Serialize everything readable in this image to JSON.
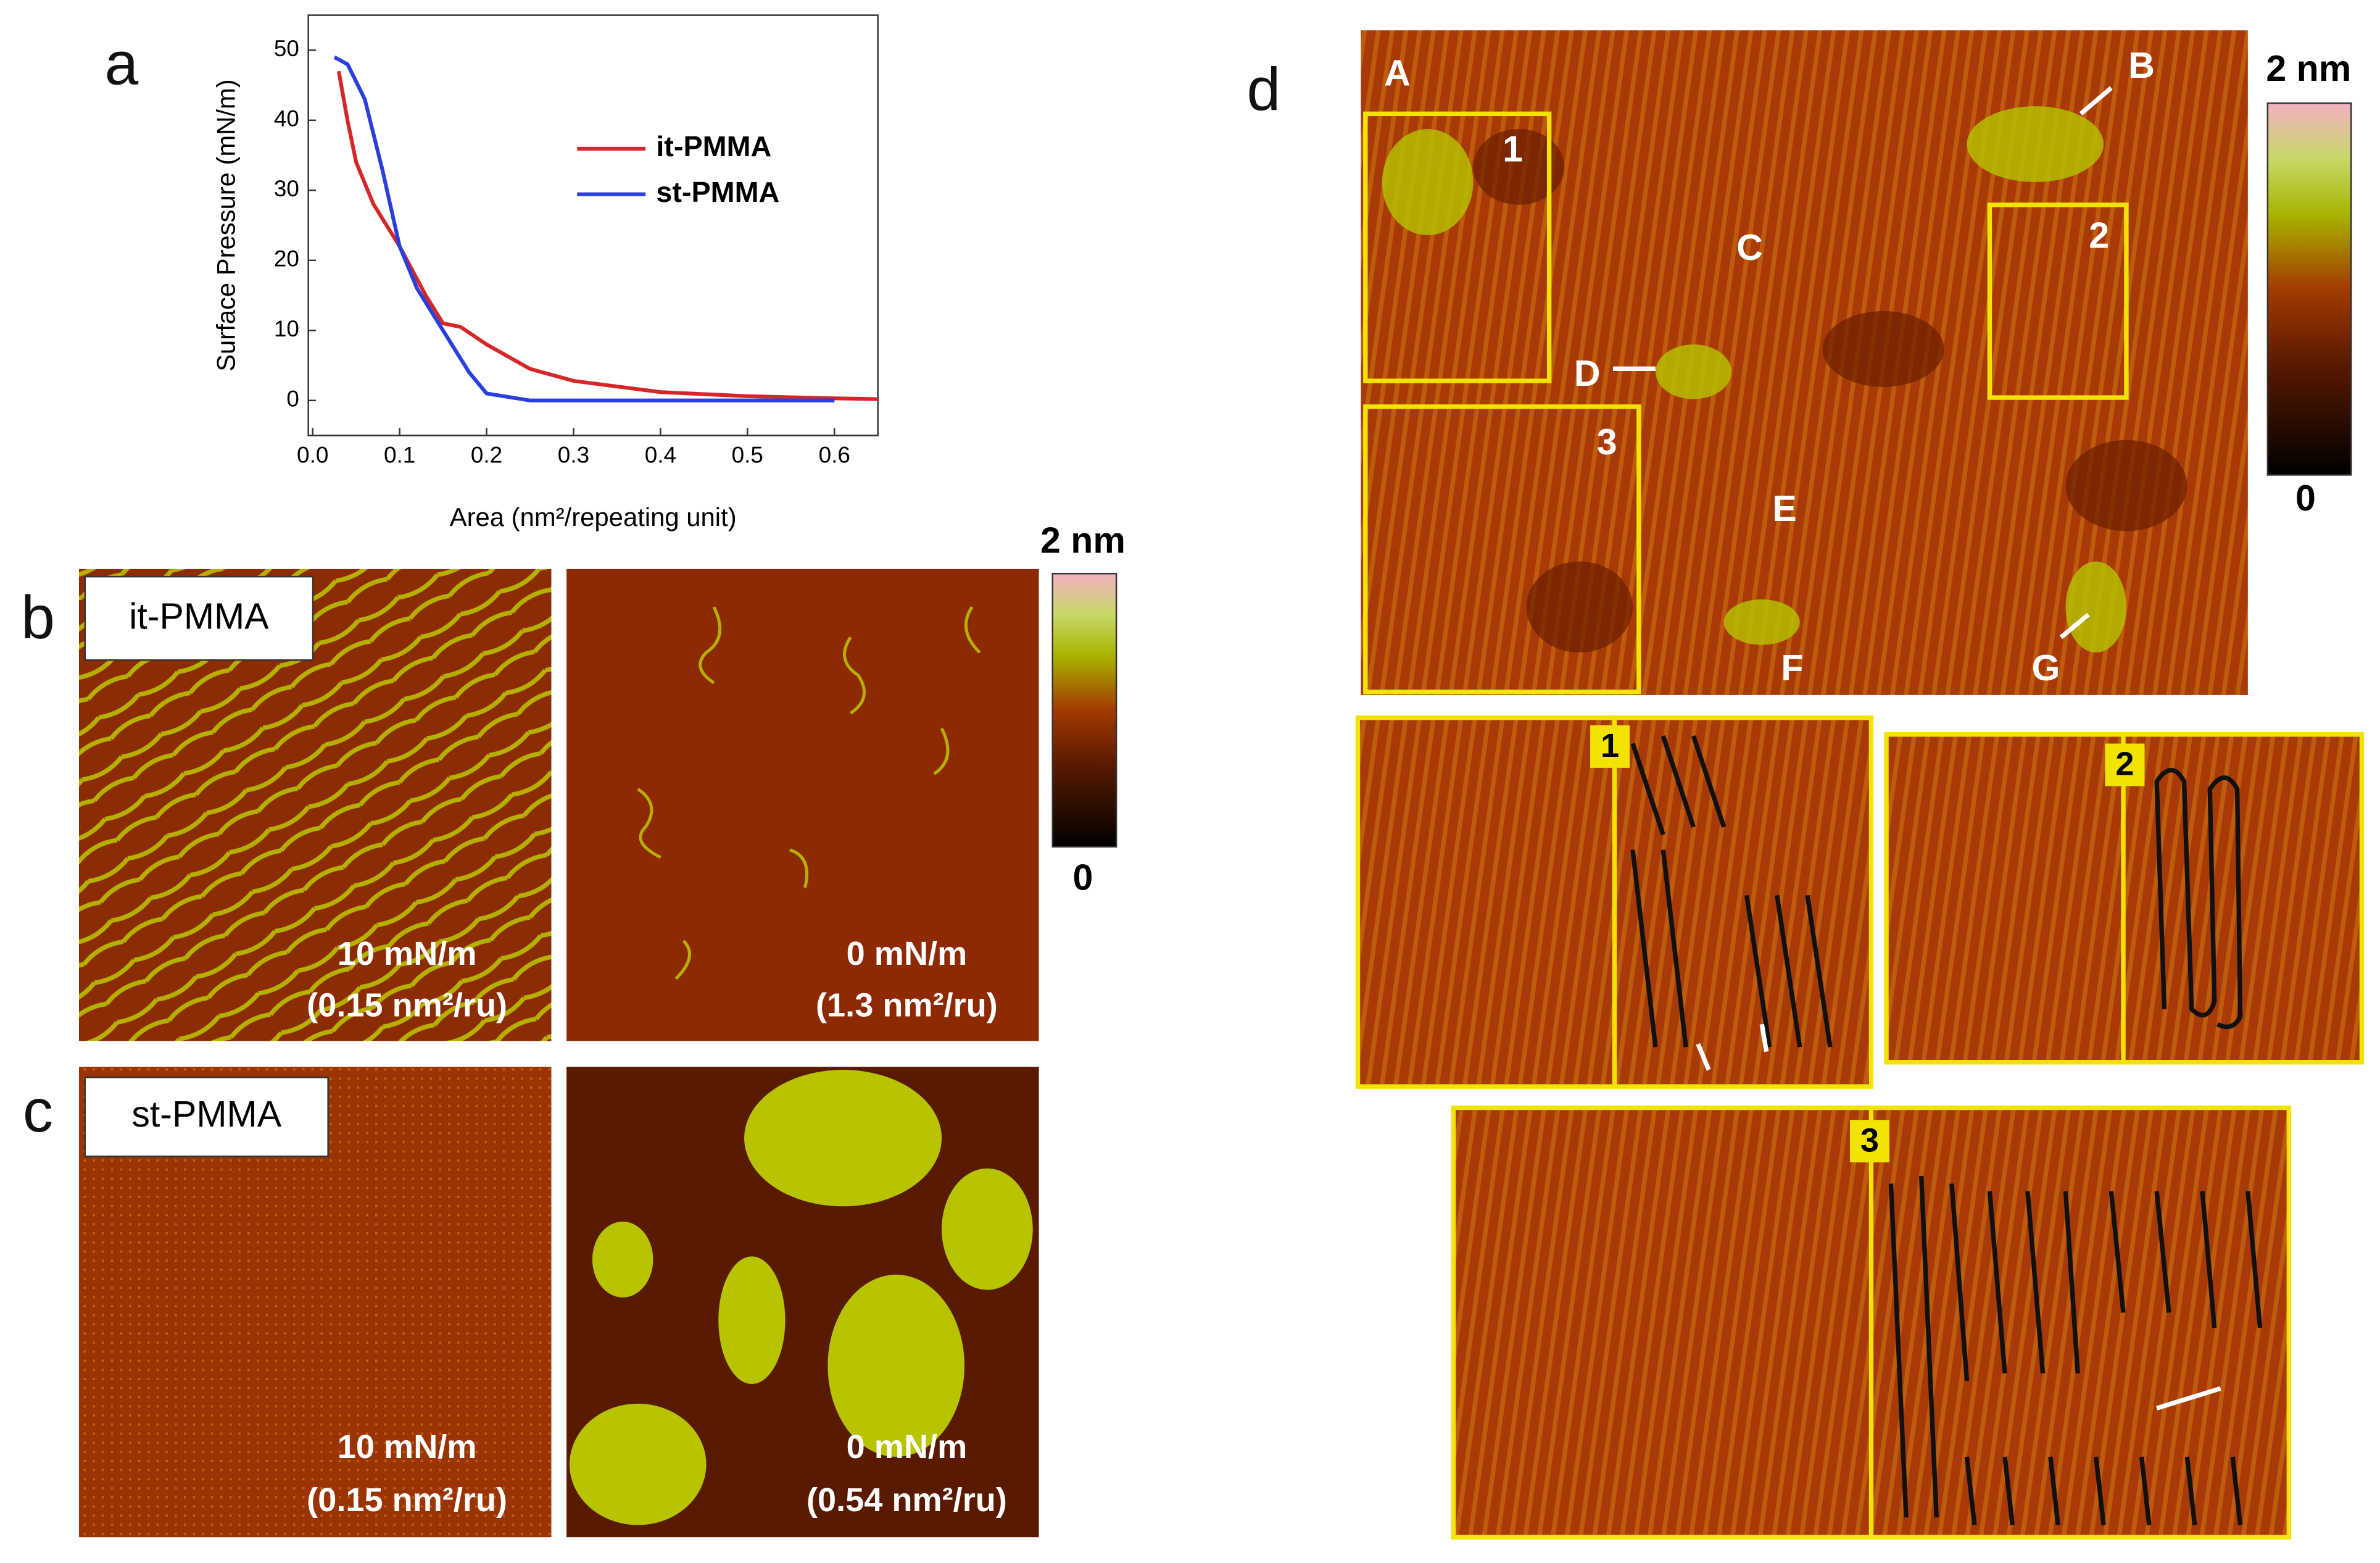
{
  "chart_data": {
    "type": "line",
    "y_label": "Surface Pressure (mN/m)",
    "x_label": "Area (nm²/repeating unit)",
    "xlim": [
      -0.005,
      0.65
    ],
    "ylim": [
      -5,
      55
    ],
    "xticks": [
      {
        "value": 0,
        "label": "0.0"
      },
      0.1,
      0.2,
      0.3,
      0.4,
      0.5,
      0.6
    ],
    "yticks": [
      0,
      10,
      20,
      30,
      40,
      50
    ],
    "series": [
      {
        "name": "it-PMMA",
        "color": "#d62728",
        "x": [
          0.03,
          0.04,
          0.05,
          0.07,
          0.1,
          0.13,
          0.15,
          0.17,
          0.2,
          0.25,
          0.3,
          0.4,
          0.5,
          0.6,
          0.65
        ],
        "values": [
          47,
          40,
          34,
          28,
          22,
          15,
          11,
          10.5,
          8,
          4.5,
          2.8,
          1.2,
          0.6,
          0.3,
          0.2
        ]
      },
      {
        "name": "st-PMMA",
        "color": "#2a3fe0",
        "x": [
          0.025,
          0.04,
          0.06,
          0.08,
          0.1,
          0.12,
          0.15,
          0.18,
          0.2,
          0.25,
          0.3,
          0.4,
          0.5,
          0.6
        ],
        "values": [
          49,
          48,
          43,
          33,
          22,
          16,
          10,
          4,
          1,
          0,
          0,
          0,
          0,
          0
        ]
      }
    ],
    "legend": "upper right"
  },
  "panels": {
    "a": "a",
    "b": {
      "label": "b",
      "sample": "it-PMMA",
      "images": [
        {
          "pressure": "10 mN/m",
          "area": "(0.15 nm²/ru)"
        },
        {
          "pressure": "0 mN/m",
          "area": "(1.3 nm²/ru)"
        }
      ]
    },
    "c": {
      "label": "c",
      "sample": "st-PMMA",
      "images": [
        {
          "pressure": "10 mN/m",
          "area": "(0.15 nm²/ru)"
        },
        {
          "pressure": "0 mN/m",
          "area": "(0.54 nm²/ru)"
        }
      ]
    },
    "colorbar": {
      "max": "2 nm",
      "min": "0"
    },
    "d": {
      "label": "d",
      "markers": [
        "A",
        "B",
        "C",
        "D",
        "E",
        "F",
        "G"
      ],
      "boxes": [
        "1",
        "2",
        "3"
      ],
      "insets": [
        "1",
        "2",
        "3"
      ],
      "colorbar": {
        "max": "2 nm",
        "min": "0"
      }
    }
  }
}
